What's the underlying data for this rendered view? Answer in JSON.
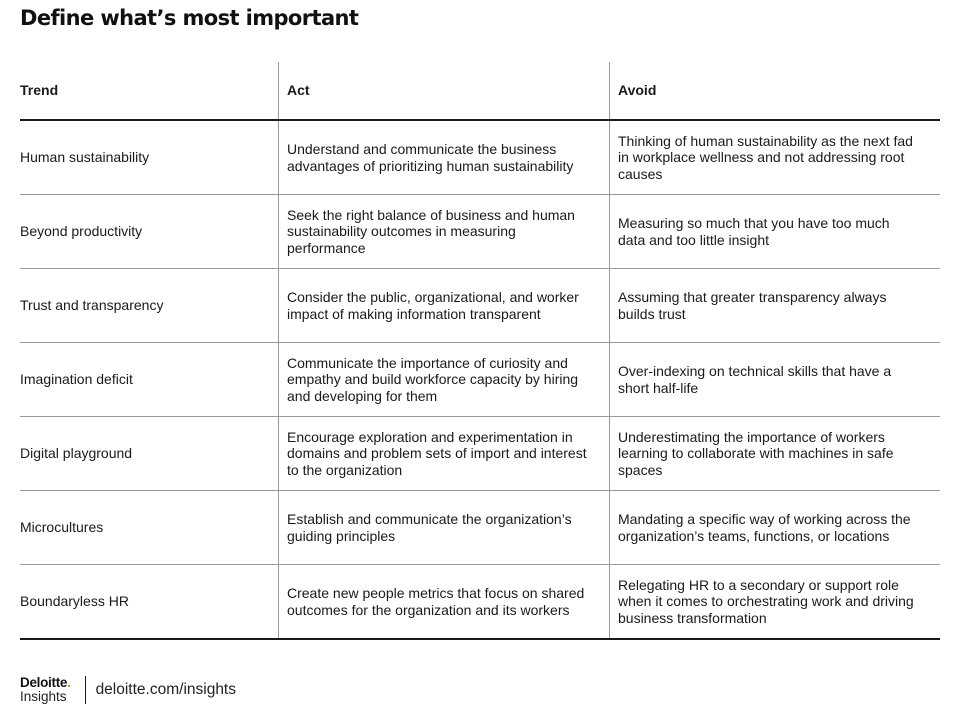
{
  "title": "Define what’s most important",
  "table": {
    "headers": {
      "trend": "Trend",
      "act": "Act",
      "avoid": "Avoid"
    },
    "rows": [
      {
        "trend": "Human sustainability",
        "act": "Understand and communicate the business advantages of prioritizing human sustainability",
        "avoid": "Thinking of human sustainability as the next fad in workplace wellness and not addressing root causes"
      },
      {
        "trend": "Beyond productivity",
        "act": "Seek the right balance of business and human sustainability outcomes in measuring performance",
        "avoid": "Measuring so much that you have too much data and too little insight"
      },
      {
        "trend": "Trust and transparency",
        "act": "Consider the public, organizational, and worker impact of making information transparent",
        "avoid": "Assuming that greater transparency always builds trust"
      },
      {
        "trend": "Imagination deficit",
        "act": "Communicate the importance of curiosity and empathy and build workforce capacity by hiring and developing for them",
        "avoid": "Over-indexing on technical skills that have a short half-life"
      },
      {
        "trend": "Digital playground",
        "act": "Encourage exploration and experimentation in domains and problem sets of import and interest to the organization",
        "avoid": "Underestimating the importance of workers learning to collaborate with machines in safe spaces"
      },
      {
        "trend": "Microcultures",
        "act": "Establish and communicate the organization’s guiding principles",
        "avoid": "Mandating a specific way of working across the organization’s teams, functions, or locations"
      },
      {
        "trend": "Boundaryless HR",
        "act": "Create new people metrics that focus on shared outcomes for the organization and its workers",
        "avoid": "Relegating HR to a secondary or support role when it comes to orchestrating work and driving business transformation"
      }
    ]
  },
  "footer": {
    "logo_main": "Deloitte",
    "logo_dot": ".",
    "logo_sub": "Insights",
    "url": "deloitte.com/insights",
    "accent_color": "#86bc25"
  }
}
